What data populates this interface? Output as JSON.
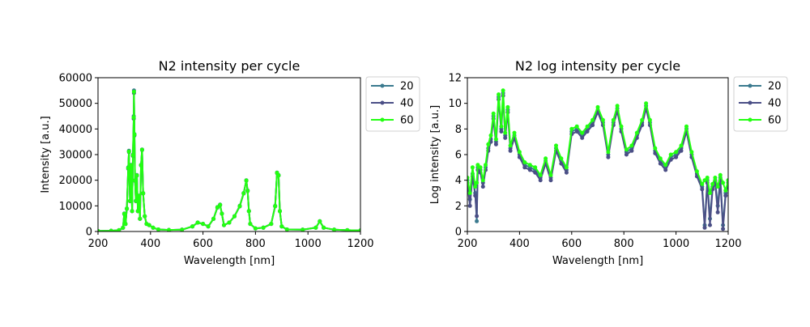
{
  "chart_data": [
    {
      "type": "line",
      "title": "N2 intensity per cycle",
      "xlabel": "Wavelength [nm]",
      "ylabel": "Intensity [a.u.]",
      "xlim": [
        200,
        1200
      ],
      "ylim": [
        0,
        60000
      ],
      "xticks": [
        200,
        400,
        600,
        800,
        1000,
        1200
      ],
      "yticks": [
        0,
        10000,
        20000,
        30000,
        40000,
        50000,
        60000
      ],
      "legend_position": "outside-right",
      "series": [
        {
          "name": "20",
          "color": "#3b7a8f"
        },
        {
          "name": "40",
          "color": "#4b4f86"
        },
        {
          "name": "60",
          "color": "#22ff11"
        }
      ],
      "x": [
        200,
        250,
        280,
        295,
        300,
        305,
        310,
        315,
        318,
        322,
        326,
        330,
        333,
        336,
        337,
        339,
        341,
        344,
        348,
        352,
        356,
        360,
        364,
        368,
        372,
        378,
        385,
        395,
        410,
        430,
        470,
        520,
        560,
        580,
        600,
        620,
        640,
        655,
        665,
        672,
        680,
        700,
        720,
        740,
        755,
        765,
        770,
        775,
        780,
        800,
        830,
        860,
        875,
        882,
        888,
        893,
        900,
        920,
        980,
        1030,
        1045,
        1060,
        1100,
        1150,
        1200
      ],
      "values": [
        [
          200,
          300,
          500,
          1500,
          7000,
          3000,
          9000,
          25000,
          31500,
          12000,
          26000,
          8000,
          30000,
          45000,
          55000,
          38000,
          20000,
          12000,
          22000,
          8000,
          14000,
          5000,
          26000,
          32000,
          15000,
          6000,
          3000,
          2500,
          1500,
          800,
          600,
          700,
          2000,
          3500,
          3000,
          2000,
          5000,
          9500,
          10500,
          7000,
          2500,
          3500,
          6000,
          10000,
          15000,
          20000,
          16000,
          8000,
          3000,
          1200,
          1500,
          3000,
          10000,
          23000,
          22000,
          8000,
          2000,
          800,
          700,
          1500,
          4000,
          1500,
          700,
          500,
          400
        ],
        [
          200,
          300,
          500,
          1400,
          6800,
          2900,
          8800,
          24500,
          31000,
          11800,
          25500,
          7900,
          29500,
          44000,
          54000,
          37500,
          19800,
          11800,
          21800,
          7900,
          13800,
          4900,
          25800,
          31800,
          14800,
          5900,
          2950,
          2450,
          1450,
          790,
          590,
          690,
          1950,
          3450,
          2950,
          1950,
          4900,
          9300,
          10300,
          6900,
          2450,
          3450,
          5900,
          9800,
          14800,
          19800,
          15800,
          7900,
          2950,
          1180,
          1480,
          2950,
          9800,
          22800,
          21800,
          7900,
          1950,
          790,
          690,
          1480,
          3950,
          1480,
          690,
          490,
          390
        ],
        [
          200,
          300,
          500,
          1450,
          6900,
          2950,
          8900,
          24800,
          31200,
          11900,
          25800,
          7950,
          29800,
          44500,
          54500,
          37800,
          19900,
          11900,
          21900,
          7950,
          13900,
          4950,
          25900,
          31900,
          14900,
          5950,
          2980,
          2480,
          1480,
          795,
          595,
          695,
          1980,
          3480,
          2980,
          1980,
          4950,
          9400,
          10400,
          6950,
          2480,
          3480,
          5950,
          9900,
          14900,
          19900,
          15900,
          7950,
          2980,
          1190,
          1490,
          2980,
          9900,
          22900,
          21900,
          7950,
          1980,
          795,
          695,
          1490,
          3980,
          1490,
          695,
          495,
          395
        ]
      ]
    },
    {
      "type": "line",
      "title": "N2 log intensity per cycle",
      "xlabel": "Wavelength [nm]",
      "ylabel": "Log intensity [a.u.]",
      "xlim": [
        200,
        1200
      ],
      "ylim": [
        0,
        12
      ],
      "xticks": [
        200,
        400,
        600,
        800,
        1000,
        1200
      ],
      "yticks": [
        0,
        2,
        4,
        6,
        8,
        10,
        12
      ],
      "legend_position": "outside-right",
      "series": [
        {
          "name": "20",
          "color": "#3b7a8f"
        },
        {
          "name": "40",
          "color": "#4b4f86"
        },
        {
          "name": "60",
          "color": "#22ff11"
        }
      ],
      "x": [
        200,
        210,
        220,
        230,
        236,
        240,
        250,
        260,
        270,
        280,
        290,
        300,
        310,
        320,
        330,
        337,
        345,
        355,
        365,
        380,
        400,
        420,
        440,
        460,
        480,
        500,
        520,
        540,
        560,
        580,
        600,
        620,
        640,
        660,
        680,
        700,
        720,
        740,
        760,
        775,
        790,
        810,
        830,
        850,
        870,
        885,
        900,
        920,
        940,
        960,
        980,
        1000,
        1020,
        1040,
        1060,
        1080,
        1100,
        1110,
        1120,
        1130,
        1140,
        1150,
        1160,
        1170,
        1180,
        1190,
        1200
      ],
      "values": [
        [
          4.0,
          2.5,
          4.5,
          3.0,
          0.8,
          5.0,
          4.8,
          3.8,
          5.0,
          6.5,
          7.2,
          9.0,
          7.0,
          10.5,
          8.0,
          10.8,
          7.5,
          9.5,
          6.5,
          7.5,
          6.0,
          5.2,
          5.0,
          4.8,
          4.2,
          5.5,
          4.2,
          6.5,
          5.5,
          4.8,
          7.8,
          8.0,
          7.5,
          8.0,
          8.5,
          9.5,
          8.5,
          6.0,
          8.5,
          9.6,
          8.0,
          6.2,
          6.5,
          7.5,
          8.5,
          9.8,
          8.5,
          6.3,
          5.5,
          5.0,
          5.8,
          6.0,
          6.5,
          8.0,
          6.0,
          4.5,
          3.5,
          0.5,
          4.0,
          1.0,
          3.5,
          4.0,
          2.0,
          4.2,
          0.5,
          3.0,
          4.0
        ],
        [
          3.8,
          2.0,
          4.3,
          2.8,
          1.2,
          4.8,
          4.6,
          3.5,
          4.8,
          6.3,
          7.0,
          8.8,
          6.8,
          10.3,
          7.8,
          10.6,
          7.3,
          9.3,
          6.3,
          7.3,
          5.8,
          5.0,
          4.8,
          4.6,
          4.0,
          5.3,
          4.0,
          6.3,
          5.3,
          4.6,
          7.6,
          7.8,
          7.3,
          7.8,
          8.3,
          9.3,
          8.3,
          5.8,
          8.3,
          9.4,
          7.8,
          6.0,
          6.3,
          7.3,
          8.3,
          9.6,
          8.3,
          6.1,
          5.3,
          4.8,
          5.6,
          5.8,
          6.3,
          7.8,
          5.8,
          4.3,
          3.3,
          0.3,
          3.8,
          0.5,
          3.3,
          3.8,
          1.5,
          4.0,
          0.2,
          2.8,
          3.8
        ],
        [
          4.2,
          3.0,
          5.0,
          3.5,
          3.8,
          5.2,
          5.0,
          4.0,
          5.2,
          6.8,
          7.5,
          9.2,
          7.2,
          10.7,
          8.2,
          11.0,
          7.7,
          9.7,
          6.7,
          7.7,
          6.2,
          5.4,
          5.2,
          5.0,
          4.4,
          5.7,
          4.4,
          6.7,
          5.7,
          5.0,
          8.0,
          8.2,
          7.7,
          8.2,
          8.7,
          9.7,
          8.7,
          6.2,
          8.7,
          9.8,
          8.2,
          6.4,
          6.7,
          7.7,
          8.7,
          10.0,
          8.7,
          6.5,
          5.7,
          5.2,
          6.0,
          6.2,
          6.7,
          8.2,
          6.2,
          4.7,
          3.7,
          4.0,
          4.2,
          3.0,
          3.7,
          4.2,
          3.5,
          4.4,
          3.8,
          3.2,
          4.0
        ]
      ]
    }
  ]
}
